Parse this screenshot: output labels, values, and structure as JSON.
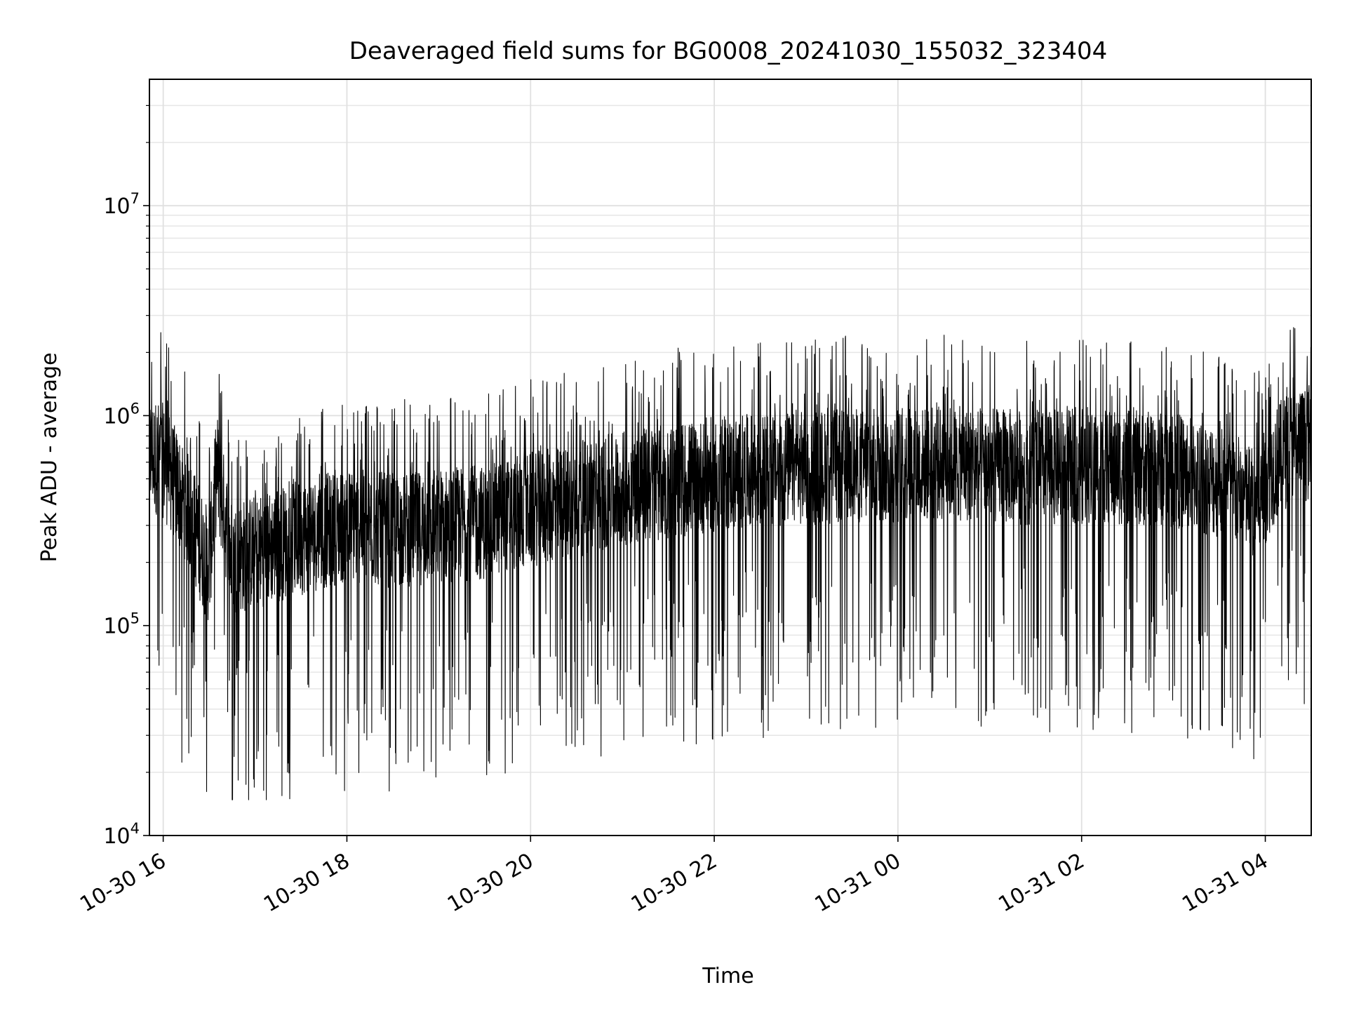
{
  "chart_data": {
    "type": "line",
    "title": "Deaveraged field sums for BG0008_20241030_155032_323404",
    "xlabel": "Time",
    "ylabel": "Peak ADU - average",
    "yscale": "log",
    "ylim": [
      10000,
      40000000
    ],
    "xlim": [
      "2024-10-30 15:51",
      "2024-10-31 04:30"
    ],
    "grid": true,
    "line_color": "#000000",
    "x_ticks": [
      {
        "time": "2024-10-30 16:00",
        "label": "10-30 16"
      },
      {
        "time": "2024-10-30 18:00",
        "label": "10-30 18"
      },
      {
        "time": "2024-10-30 20:00",
        "label": "10-30 20"
      },
      {
        "time": "2024-10-30 22:00",
        "label": "10-30 22"
      },
      {
        "time": "2024-10-31 00:00",
        "label": "10-31 00"
      },
      {
        "time": "2024-10-31 02:00",
        "label": "10-31 02"
      },
      {
        "time": "2024-10-31 04:00",
        "label": "10-31 04"
      }
    ],
    "y_ticks": [
      {
        "value": 10000,
        "base": "10",
        "exp": "4"
      },
      {
        "value": 100000,
        "base": "10",
        "exp": "5"
      },
      {
        "value": 1000000,
        "base": "10",
        "exp": "6"
      },
      {
        "value": 10000000,
        "base": "10",
        "exp": "7"
      }
    ],
    "series": [
      {
        "x": [
          "2024-10-30 15:51",
          "2024-10-30 16:00",
          "2024-10-30 16:15",
          "2024-10-30 16:25",
          "2024-10-30 16:30",
          "2024-10-30 16:35",
          "2024-10-30 16:45",
          "2024-10-30 17:00",
          "2024-10-30 17:30",
          "2024-10-30 18:00",
          "2024-10-30 18:30",
          "2024-10-30 19:00",
          "2024-10-30 19:30",
          "2024-10-30 20:00",
          "2024-10-30 20:30",
          "2024-10-30 21:00",
          "2024-10-30 21:30",
          "2024-10-30 22:00",
          "2024-10-30 22:30",
          "2024-10-30 23:00",
          "2024-10-30 23:30",
          "2024-10-31 00:00",
          "2024-10-31 00:30",
          "2024-10-31 01:00",
          "2024-10-31 01:30",
          "2024-10-31 02:00",
          "2024-10-31 02:30",
          "2024-10-31 03:00",
          "2024-10-31 03:30",
          "2024-10-31 03:55",
          "2024-10-31 04:05",
          "2024-10-31 04:15",
          "2024-10-31 04:30"
        ],
        "y": [
          700000,
          650000,
          400000,
          250000,
          200000,
          600000,
          220000,
          240000,
          280000,
          320000,
          300000,
          320000,
          330000,
          380000,
          420000,
          480000,
          520000,
          560000,
          580000,
          600000,
          610000,
          620000,
          630000,
          620000,
          600000,
          610000,
          600000,
          590000,
          520000,
          400000,
          600000,
          750000,
          800000
        ]
      }
    ]
  }
}
